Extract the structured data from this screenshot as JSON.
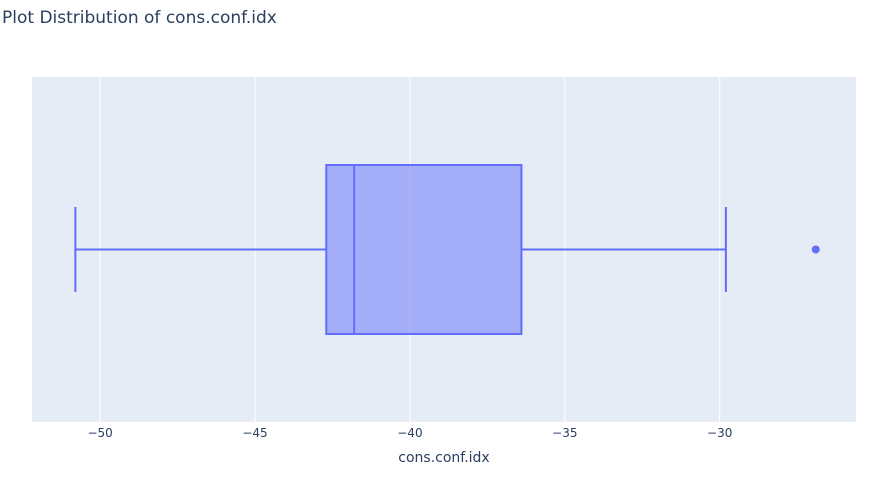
{
  "chart_data": {
    "type": "box",
    "title": "Plot Distribution of cons.conf.idx",
    "xlabel": "cons.conf.idx",
    "ylabel": "",
    "orientation": "horizontal",
    "xlim": [
      -52.2,
      -25.6
    ],
    "xticks": [
      -50,
      -45,
      -40,
      -35,
      -30
    ],
    "xtick_labels": [
      "−50",
      "−45",
      "−40",
      "−35",
      "−30"
    ],
    "grid": true,
    "legend": false,
    "box": {
      "min": -50.8,
      "q1": -42.7,
      "median": -41.8,
      "q3": -36.4,
      "max": -29.8,
      "outliers": [
        -26.9
      ]
    },
    "colors": {
      "plot_bg": "#e5ecf6",
      "grid": "#ffffff",
      "box_line": "#636efa",
      "box_fill": "rgba(99,110,250,0.5)",
      "text": "#2a3f5f"
    }
  }
}
